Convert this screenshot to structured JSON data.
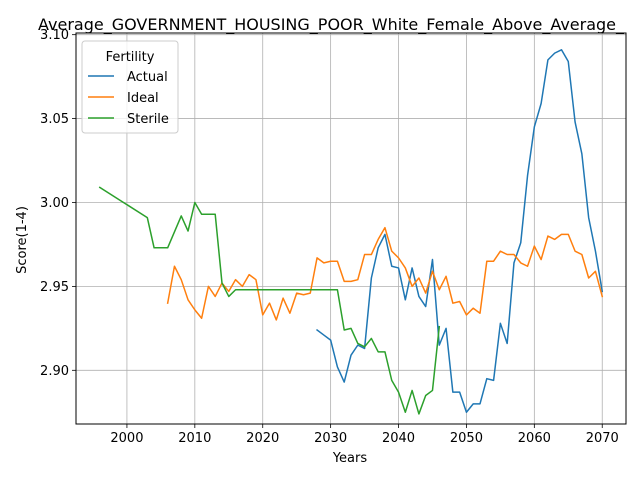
{
  "chart_data": {
    "type": "line",
    "title": "Average_GOVERNMENT_HOUSING_POOR_White_Female_Above_Average_",
    "xlabel": "Years",
    "ylabel": "Score(1-4)",
    "xlim": [
      1992.5,
      2073.5
    ],
    "ylim": [
      2.868,
      3.101
    ],
    "xticks": [
      2000,
      2010,
      2020,
      2030,
      2040,
      2050,
      2060,
      2070
    ],
    "yticks": [
      2.9,
      2.95,
      3.0,
      3.05,
      3.1
    ],
    "ytick_labels": [
      "2.90",
      "2.95",
      "3.00",
      "3.05",
      "3.10"
    ],
    "grid": true,
    "legend": {
      "title": "Fertility",
      "position": "top-left"
    },
    "series": [
      {
        "name": "Actual",
        "color": "#1f77b4",
        "x": [
          2028,
          2029,
          2030,
          2031,
          2032,
          2033,
          2034,
          2035,
          2036,
          2037,
          2038,
          2039,
          2040,
          2041,
          2042,
          2043,
          2044,
          2045,
          2046,
          2047,
          2048,
          2049,
          2050,
          2051,
          2052,
          2053,
          2054,
          2055,
          2056,
          2057,
          2058,
          2059,
          2060,
          2061,
          2062,
          2063,
          2064,
          2065,
          2066,
          2067,
          2068,
          2069,
          2070
        ],
        "y": [
          2.924,
          2.921,
          2.918,
          2.902,
          2.893,
          2.909,
          2.915,
          2.913,
          2.955,
          2.973,
          2.981,
          2.962,
          2.961,
          2.942,
          2.961,
          2.944,
          2.938,
          2.966,
          2.915,
          2.925,
          2.887,
          2.887,
          2.875,
          2.88,
          2.88,
          2.895,
          2.894,
          2.928,
          2.916,
          2.964,
          2.976,
          3.016,
          3.045,
          3.059,
          3.085,
          3.089,
          3.091,
          3.084,
          3.048,
          3.029,
          2.991,
          2.971,
          2.947
        ]
      },
      {
        "name": "Ideal",
        "color": "#ff7f0e",
        "x": [
          2006,
          2007,
          2008,
          2009,
          2010,
          2011,
          2012,
          2013,
          2014,
          2015,
          2016,
          2017,
          2018,
          2019,
          2020,
          2021,
          2022,
          2023,
          2024,
          2025,
          2026,
          2027,
          2028,
          2029,
          2030,
          2031,
          2032,
          2033,
          2034,
          2035,
          2036,
          2037,
          2038,
          2039,
          2040,
          2041,
          2042,
          2043,
          2044,
          2045,
          2046,
          2047,
          2048,
          2049,
          2050,
          2051,
          2052,
          2053,
          2054,
          2055,
          2056,
          2057,
          2058,
          2059,
          2060,
          2061,
          2062,
          2063,
          2064,
          2065,
          2066,
          2067,
          2068,
          2069,
          2070
        ],
        "y": [
          2.94,
          2.962,
          2.954,
          2.942,
          2.936,
          2.931,
          2.95,
          2.944,
          2.952,
          2.947,
          2.954,
          2.95,
          2.957,
          2.954,
          2.933,
          2.94,
          2.93,
          2.943,
          2.934,
          2.946,
          2.945,
          2.946,
          2.967,
          2.964,
          2.965,
          2.965,
          2.953,
          2.953,
          2.954,
          2.969,
          2.969,
          2.978,
          2.985,
          2.971,
          2.967,
          2.961,
          2.95,
          2.955,
          2.946,
          2.959,
          2.948,
          2.956,
          2.94,
          2.941,
          2.933,
          2.937,
          2.934,
          2.965,
          2.965,
          2.971,
          2.969,
          2.969,
          2.964,
          2.962,
          2.974,
          2.966,
          2.98,
          2.978,
          2.981,
          2.981,
          2.971,
          2.969,
          2.955,
          2.959,
          2.944
        ]
      },
      {
        "name": "Sterile",
        "color": "#2ca02c",
        "x": [
          1996,
          2003,
          2004,
          2006,
          2008,
          2009,
          2010,
          2011,
          2013,
          2014,
          2015,
          2016,
          2017,
          2031,
          2032,
          2033,
          2034,
          2035,
          2036,
          2037,
          2038,
          2039,
          2040,
          2041,
          2042,
          2043,
          2044,
          2045,
          2046
        ],
        "y": [
          3.009,
          2.991,
          2.973,
          2.973,
          2.992,
          2.983,
          3.0,
          2.993,
          2.993,
          2.952,
          2.944,
          2.948,
          2.948,
          2.948,
          2.924,
          2.925,
          2.916,
          2.914,
          2.919,
          2.911,
          2.911,
          2.894,
          2.887,
          2.875,
          2.888,
          2.874,
          2.885,
          2.888,
          2.926
        ]
      }
    ]
  }
}
